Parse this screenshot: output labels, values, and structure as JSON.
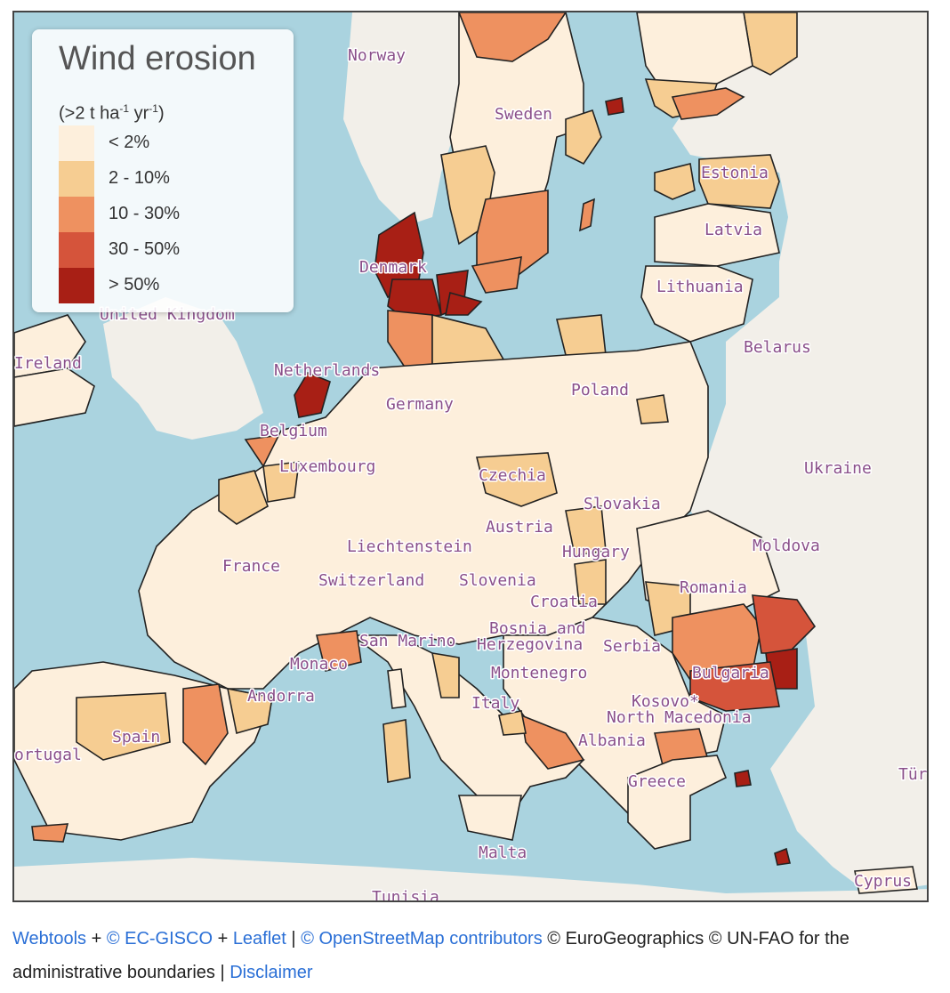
{
  "legend": {
    "title": "Wind erosion",
    "unit_prefix": "(>2 t ha",
    "unit_sup1": "-1",
    "unit_mid": " yr",
    "unit_sup2": "-1",
    "unit_suffix": ")",
    "classes": [
      {
        "label": "< 2%",
        "color": "#fdefdc"
      },
      {
        "label": "2 - 10%",
        "color": "#f6cd92"
      },
      {
        "label": "10 - 30%",
        "color": "#ee9160"
      },
      {
        "label": "30 - 50%",
        "color": "#d5543b"
      },
      {
        "label": "> 50%",
        "color": "#a81f15"
      }
    ]
  },
  "map": {
    "colors": {
      "sea": "#aad3df",
      "land": "#f2efe9",
      "border": "#222222"
    },
    "country_labels": [
      "Norway",
      "Sweden",
      "Estonia",
      "Latvia",
      "Denmark",
      "Lithuania",
      "United Kingdom",
      "Belarus",
      "Ireland",
      "Netherlands",
      "Poland",
      "Germany",
      "Belgium",
      "Luxembourg",
      "Czechia",
      "Ukraine",
      "Slovakia",
      "Austria",
      "Moldova",
      "Liechtenstein",
      "Hungary",
      "France",
      "Switzerland",
      "Slovenia",
      "Romania",
      "Croatia",
      "Bosnia and",
      "Herzegovina",
      "San Marino",
      "Serbia",
      "Monaco",
      "Bulgaria",
      "Montenegro",
      "Andorra",
      "Kosovo*",
      "Italy",
      "North Macedonia",
      "Spain",
      "Albania",
      "ortugal",
      "Greece",
      "Tür",
      "Malta",
      "Cyprus",
      "Tunisia"
    ]
  },
  "attribution": {
    "webtools": "Webtools",
    "plus1": " + ",
    "gisco": "© EC-GISCO",
    "plus2": " + ",
    "leaflet": "Leaflet",
    "sep1": " | ",
    "osm": "© OpenStreetMap contributors",
    "rest": " © EuroGeographics © UN-FAO for the administrative boundaries | ",
    "disclaimer": "Disclaimer"
  }
}
